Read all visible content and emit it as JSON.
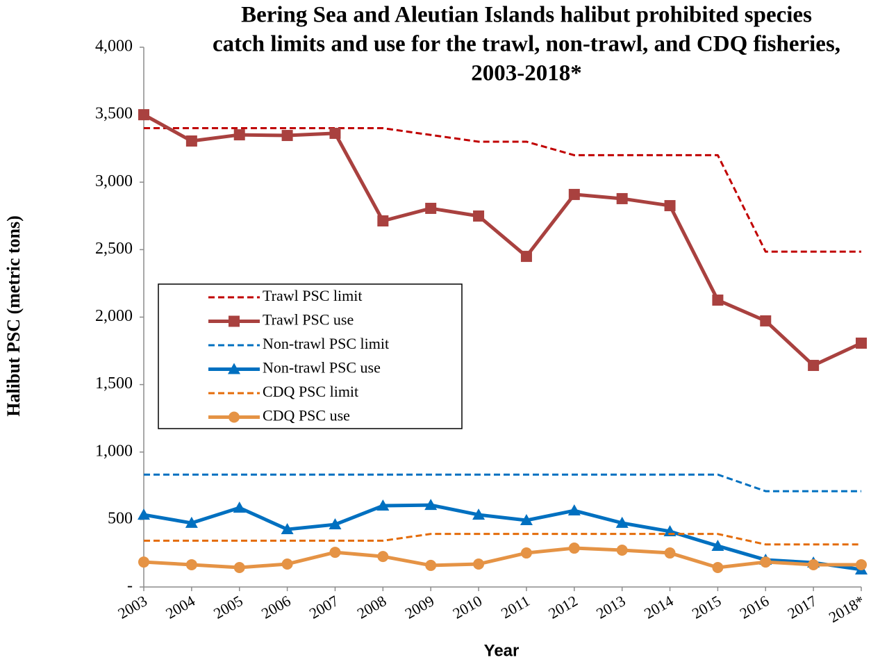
{
  "chart_data": {
    "type": "line",
    "title": [
      "Bering Sea and Aleutian Islands halibut prohibited species",
      "catch limits and use for the trawl, non-trawl, and CDQ fisheries,",
      "2003-2018*"
    ],
    "y_label": "Halibut PSC (metric tons)",
    "x_label": "Year",
    "categories": [
      "2003",
      "2004",
      "2005",
      "2006",
      "2007",
      "2008",
      "2009",
      "2010",
      "2011",
      "2012",
      "2013",
      "2014",
      "2015",
      "2016",
      "2017",
      "2018*"
    ],
    "ylim": [
      0,
      4000
    ],
    "yticks": [
      {
        "value": 0,
        "label": "-"
      },
      500,
      {
        "value": 1000,
        "label": "1,000"
      },
      {
        "value": 1500,
        "label": "1,500"
      },
      {
        "value": 2000,
        "label": "2,000"
      },
      {
        "value": 2500,
        "label": "2,500"
      },
      {
        "value": 3000,
        "label": "3,000"
      },
      {
        "value": 3500,
        "label": "3,500"
      },
      {
        "value": 4000,
        "label": "4,000"
      }
    ],
    "grid": false,
    "series": [
      {
        "name": "Trawl PSC limit",
        "color": "#c00000",
        "dash": true,
        "marker": null,
        "values": [
          3400,
          3400,
          3400,
          3400,
          3400,
          3400,
          3350,
          3300,
          3300,
          3200,
          3200,
          3200,
          3200,
          2485,
          2485,
          2485
        ]
      },
      {
        "name": "Trawl PSC use",
        "color": "#a9413f",
        "dash": false,
        "marker": "square",
        "values": [
          3500,
          3305,
          3351,
          3346,
          3362,
          2713,
          2806,
          2749,
          2450,
          2909,
          2878,
          2826,
          2126,
          1972,
          1642,
          1807
        ]
      },
      {
        "name": "Non-trawl PSC limit",
        "color": "#0070c0",
        "dash": true,
        "marker": null,
        "values": [
          833,
          833,
          833,
          833,
          833,
          833,
          833,
          833,
          833,
          833,
          833,
          833,
          833,
          710,
          710,
          710
        ]
      },
      {
        "name": "Non-trawl PSC use",
        "color": "#0070c0",
        "dash": false,
        "marker": "triangle",
        "values": [
          535,
          474,
          587,
          427,
          463,
          602,
          607,
          535,
          494,
          566,
          474,
          412,
          304,
          201,
          180,
          129
        ]
      },
      {
        "name": "CDQ PSC limit",
        "color": "#e46c0a",
        "dash": true,
        "marker": null,
        "values": [
          343,
          343,
          343,
          343,
          343,
          343,
          393,
          393,
          393,
          393,
          393,
          393,
          393,
          315,
          315,
          315
        ]
      },
      {
        "name": "CDQ PSC use",
        "color": "#e59345",
        "dash": false,
        "marker": "circle",
        "values": [
          185,
          165,
          144,
          170,
          257,
          226,
          160,
          170,
          252,
          288,
          273,
          252,
          144,
          185,
          165,
          165
        ]
      }
    ]
  }
}
